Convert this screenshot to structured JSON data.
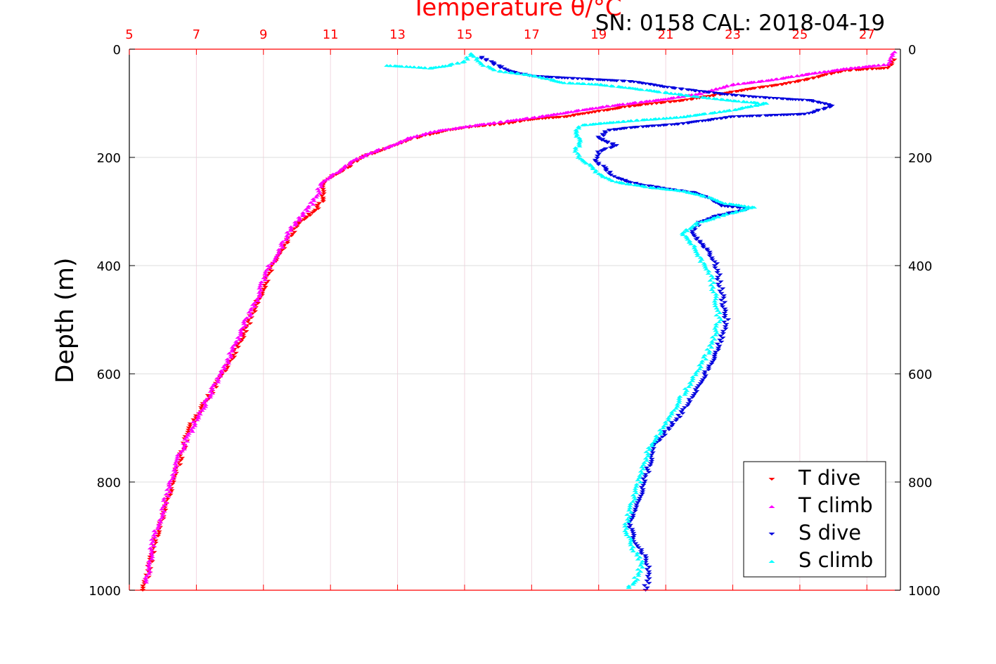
{
  "chart_data": {
    "type": "scatter",
    "title": "SN: 0158  CAL: 2018-04-19",
    "xlabel": "Temperature θ/°C",
    "ylabel": "Depth (m)",
    "xlim": [
      5,
      28
    ],
    "ylim": [
      0,
      1000
    ],
    "y_reversed": true,
    "x_ticks": [
      "5",
      "7",
      "9",
      "11",
      "13",
      "15",
      "17",
      "19",
      "21",
      "23",
      "25",
      "27"
    ],
    "y_ticks": [
      "0",
      "200",
      "400",
      "600",
      "800",
      "1000"
    ],
    "grid": true,
    "legend_position": "bottom-right",
    "colors": {
      "t_dive": "#ff0000",
      "t_climb": "#ff00ff",
      "s_dive": "#0000dd",
      "s_climb": "#00ffff",
      "axis": "#ff0000",
      "grid": "#d9d9d9"
    },
    "series": [
      {
        "name": "T dive",
        "marker": "triangle-down",
        "color": "#ff0000",
        "points": [
          [
            27.8,
            20
          ],
          [
            27.6,
            35
          ],
          [
            26.3,
            40
          ],
          [
            25.3,
            55
          ],
          [
            24.5,
            65
          ],
          [
            23.4,
            75
          ],
          [
            22.5,
            85
          ],
          [
            21.5,
            95
          ],
          [
            20.0,
            105
          ],
          [
            19.0,
            115
          ],
          [
            18.0,
            125
          ],
          [
            17.0,
            130
          ],
          [
            16.2,
            138
          ],
          [
            15.3,
            143
          ],
          [
            14.5,
            150
          ],
          [
            13.6,
            163
          ],
          [
            13.0,
            175
          ],
          [
            12.4,
            190
          ],
          [
            11.9,
            200
          ],
          [
            11.6,
            215
          ],
          [
            11.2,
            230
          ],
          [
            10.9,
            240
          ],
          [
            10.8,
            255
          ],
          [
            10.8,
            275
          ],
          [
            10.6,
            295
          ],
          [
            10.3,
            310
          ],
          [
            10.0,
            325
          ],
          [
            9.8,
            345
          ],
          [
            9.6,
            365
          ],
          [
            9.4,
            385
          ],
          [
            9.2,
            410
          ],
          [
            9.0,
            440
          ],
          [
            8.8,
            470
          ],
          [
            8.6,
            500
          ],
          [
            8.3,
            540
          ],
          [
            8.0,
            580
          ],
          [
            7.7,
            610
          ],
          [
            7.4,
            640
          ],
          [
            7.1,
            670
          ],
          [
            6.8,
            700
          ],
          [
            6.6,
            740
          ],
          [
            6.4,
            780
          ],
          [
            6.2,
            820
          ],
          [
            6.0,
            860
          ],
          [
            5.8,
            900
          ],
          [
            5.7,
            930
          ],
          [
            5.6,
            960
          ],
          [
            5.4,
            1000
          ]
        ]
      },
      {
        "name": "T climb",
        "marker": "triangle-up",
        "color": "#ff00ff",
        "points": [
          [
            27.8,
            5
          ],
          [
            27.7,
            15
          ],
          [
            27.6,
            28
          ],
          [
            26.5,
            35
          ],
          [
            25.0,
            48
          ],
          [
            24.0,
            58
          ],
          [
            23.0,
            65
          ],
          [
            22.0,
            82
          ],
          [
            21.0,
            92
          ],
          [
            19.5,
            103
          ],
          [
            18.5,
            112
          ],
          [
            17.5,
            122
          ],
          [
            16.6,
            130
          ],
          [
            15.6,
            138
          ],
          [
            14.8,
            145
          ],
          [
            14.0,
            153
          ],
          [
            13.3,
            165
          ],
          [
            12.8,
            178
          ],
          [
            12.2,
            192
          ],
          [
            11.7,
            205
          ],
          [
            11.4,
            220
          ],
          [
            11.0,
            235
          ],
          [
            10.7,
            250
          ],
          [
            10.6,
            270
          ],
          [
            10.4,
            290
          ],
          [
            10.2,
            305
          ],
          [
            9.9,
            325
          ],
          [
            9.7,
            345
          ],
          [
            9.5,
            370
          ],
          [
            9.2,
            400
          ],
          [
            9.0,
            430
          ],
          [
            8.8,
            465
          ],
          [
            8.5,
            500
          ],
          [
            8.2,
            540
          ],
          [
            7.9,
            580
          ],
          [
            7.6,
            615
          ],
          [
            7.3,
            650
          ],
          [
            7.0,
            685
          ],
          [
            6.8,
            710
          ],
          [
            6.5,
            750
          ],
          [
            6.3,
            790
          ],
          [
            6.1,
            830
          ],
          [
            5.9,
            870
          ],
          [
            5.7,
            910
          ],
          [
            5.6,
            950
          ],
          [
            5.5,
            985
          ]
        ]
      },
      {
        "name": "S dive",
        "marker": "triangle-down",
        "color": "#0000dd",
        "points": [
          [
            15.5,
            15
          ],
          [
            15.8,
            25
          ],
          [
            16.3,
            40
          ],
          [
            17.0,
            50
          ],
          [
            18.5,
            55
          ],
          [
            20.0,
            60
          ],
          [
            21.0,
            70
          ],
          [
            22.0,
            78
          ],
          [
            23.0,
            85
          ],
          [
            24.0,
            90
          ],
          [
            25.3,
            95
          ],
          [
            26.0,
            105
          ],
          [
            25.2,
            120
          ],
          [
            23.0,
            125
          ],
          [
            21.5,
            138
          ],
          [
            20.0,
            145
          ],
          [
            19.3,
            150
          ],
          [
            19.0,
            165
          ],
          [
            19.5,
            178
          ],
          [
            19.0,
            190
          ],
          [
            18.9,
            205
          ],
          [
            19.2,
            222
          ],
          [
            19.5,
            238
          ],
          [
            20.2,
            250
          ],
          [
            21.0,
            258
          ],
          [
            21.8,
            265
          ],
          [
            22.3,
            275
          ],
          [
            22.7,
            290
          ],
          [
            23.5,
            295
          ],
          [
            22.4,
            310
          ],
          [
            22.0,
            320
          ],
          [
            21.8,
            340
          ],
          [
            22.0,
            355
          ],
          [
            22.3,
            375
          ],
          [
            22.5,
            400
          ],
          [
            22.6,
            430
          ],
          [
            22.7,
            460
          ],
          [
            22.8,
            500
          ],
          [
            22.7,
            530
          ],
          [
            22.5,
            560
          ],
          [
            22.2,
            600
          ],
          [
            21.8,
            640
          ],
          [
            21.5,
            670
          ],
          [
            21.1,
            700
          ],
          [
            20.7,
            730
          ],
          [
            20.5,
            770
          ],
          [
            20.3,
            810
          ],
          [
            20.1,
            850
          ],
          [
            19.9,
            880
          ],
          [
            20.1,
            910
          ],
          [
            20.4,
            940
          ],
          [
            20.5,
            970
          ],
          [
            20.4,
            1000
          ]
        ]
      },
      {
        "name": "S climb",
        "marker": "triangle-up",
        "color": "#00ffff",
        "points": [
          [
            12.7,
            30
          ],
          [
            13.3,
            32
          ],
          [
            14.0,
            35
          ],
          [
            14.5,
            30
          ],
          [
            15.0,
            22
          ],
          [
            15.2,
            8
          ],
          [
            15.6,
            30
          ],
          [
            16.0,
            40
          ],
          [
            17.0,
            48
          ],
          [
            18.0,
            62
          ],
          [
            19.0,
            65
          ],
          [
            20.0,
            72
          ],
          [
            21.0,
            80
          ],
          [
            22.0,
            88
          ],
          [
            23.0,
            95
          ],
          [
            24.0,
            100
          ],
          [
            23.0,
            112
          ],
          [
            21.5,
            125
          ],
          [
            20.0,
            132
          ],
          [
            18.5,
            140
          ],
          [
            18.3,
            155
          ],
          [
            18.5,
            170
          ],
          [
            18.3,
            185
          ],
          [
            18.4,
            200
          ],
          [
            18.8,
            215
          ],
          [
            19.0,
            230
          ],
          [
            19.5,
            245
          ],
          [
            20.5,
            255
          ],
          [
            21.5,
            262
          ],
          [
            22.2,
            272
          ],
          [
            22.8,
            285
          ],
          [
            23.6,
            292
          ],
          [
            22.8,
            305
          ],
          [
            22.0,
            320
          ],
          [
            21.5,
            340
          ],
          [
            21.8,
            360
          ],
          [
            22.0,
            385
          ],
          [
            22.3,
            410
          ],
          [
            22.4,
            440
          ],
          [
            22.5,
            470
          ],
          [
            22.6,
            500
          ],
          [
            22.4,
            540
          ],
          [
            22.1,
            580
          ],
          [
            21.7,
            620
          ],
          [
            21.3,
            660
          ],
          [
            20.9,
            700
          ],
          [
            20.5,
            740
          ],
          [
            20.3,
            780
          ],
          [
            20.1,
            820
          ],
          [
            19.9,
            860
          ],
          [
            19.8,
            890
          ],
          [
            20.0,
            920
          ],
          [
            20.3,
            950
          ],
          [
            20.1,
            980
          ],
          [
            19.9,
            995
          ]
        ]
      }
    ]
  }
}
